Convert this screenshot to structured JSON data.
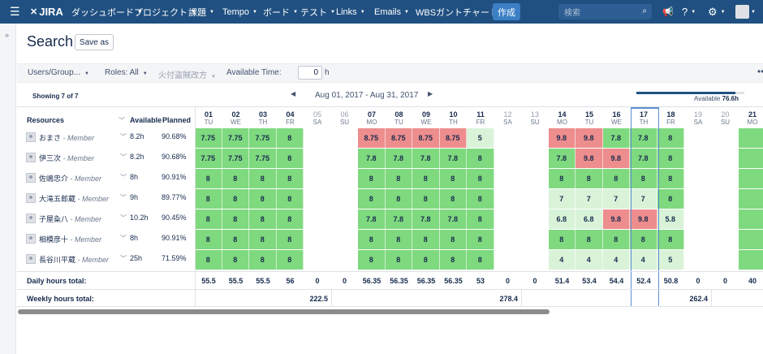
{
  "nav": {
    "logo": "JIRA",
    "items": [
      "ダッシュボード",
      "プロジェクト",
      "課題",
      "Tempo",
      "ボード",
      "テスト",
      "Links",
      "Emails",
      "WBSガントチャート"
    ],
    "create": "作成",
    "search_placeholder": "検索"
  },
  "page": {
    "title": "Search",
    "save_as": "Save as"
  },
  "filters": {
    "users_groups": "Users/Group...",
    "roles": "Roles: All",
    "third": "火付盗賊改方",
    "available_time_label": "Available Time:",
    "available_time_value": "0",
    "available_time_unit": "h"
  },
  "summary": {
    "showing": "Showing 7 of 7",
    "date_range": "Aug 01, 2017 - Aug 31, 2017",
    "available_label": "Available",
    "available_value": "76.6h",
    "available_fraction": 0.92
  },
  "table": {
    "headers": {
      "resources": "Resources",
      "available": "Available",
      "planned": "Planned"
    },
    "days": [
      {
        "n": "01",
        "w": "TU",
        "we": false
      },
      {
        "n": "02",
        "w": "WE",
        "we": false
      },
      {
        "n": "03",
        "w": "TH",
        "we": false
      },
      {
        "n": "04",
        "w": "FR",
        "we": false
      },
      {
        "n": "05",
        "w": "SA",
        "we": true
      },
      {
        "n": "06",
        "w": "SU",
        "we": true
      },
      {
        "n": "07",
        "w": "MO",
        "we": false
      },
      {
        "n": "08",
        "w": "TU",
        "we": false
      },
      {
        "n": "09",
        "w": "WE",
        "we": false
      },
      {
        "n": "10",
        "w": "TH",
        "we": false
      },
      {
        "n": "11",
        "w": "FR",
        "we": false
      },
      {
        "n": "12",
        "w": "SA",
        "we": true
      },
      {
        "n": "13",
        "w": "SU",
        "we": true
      },
      {
        "n": "14",
        "w": "MO",
        "we": false
      },
      {
        "n": "15",
        "w": "TU",
        "we": false
      },
      {
        "n": "16",
        "w": "WE",
        "we": false
      },
      {
        "n": "17",
        "w": "TH",
        "we": false
      },
      {
        "n": "18",
        "w": "FR",
        "we": false
      },
      {
        "n": "19",
        "w": "SA",
        "we": true
      },
      {
        "n": "20",
        "w": "SU",
        "we": true
      },
      {
        "n": "21",
        "w": "MO",
        "we": false
      }
    ],
    "today_index": 16,
    "rows": [
      {
        "name": "おまさ",
        "role": "- Member",
        "available": "8.2h",
        "planned": "90.68%",
        "cells": [
          [
            "7.75",
            "g"
          ],
          [
            "7.75",
            "g"
          ],
          [
            "7.75",
            "g"
          ],
          [
            "8",
            "g"
          ],
          null,
          null,
          [
            "8.75",
            "r"
          ],
          [
            "8.75",
            "r"
          ],
          [
            "8.75",
            "r"
          ],
          [
            "8.75",
            "r"
          ],
          [
            "5",
            "l"
          ],
          null,
          null,
          [
            "9.8",
            "r"
          ],
          [
            "9.8",
            "r"
          ],
          [
            "7.8",
            "g"
          ],
          [
            "7.8",
            "g"
          ],
          [
            "8",
            "g"
          ],
          null,
          null,
          [
            "",
            "g"
          ]
        ]
      },
      {
        "name": "伊三次",
        "role": "- Member",
        "available": "8.2h",
        "planned": "90.68%",
        "cells": [
          [
            "7.75",
            "g"
          ],
          [
            "7.75",
            "g"
          ],
          [
            "7.75",
            "g"
          ],
          [
            "8",
            "g"
          ],
          null,
          null,
          [
            "7.8",
            "g"
          ],
          [
            "7.8",
            "g"
          ],
          [
            "7.8",
            "g"
          ],
          [
            "7.8",
            "g"
          ],
          [
            "8",
            "g"
          ],
          null,
          null,
          [
            "7.8",
            "g"
          ],
          [
            "9.8",
            "r"
          ],
          [
            "9.8",
            "r"
          ],
          [
            "7.8",
            "g"
          ],
          [
            "8",
            "g"
          ],
          null,
          null,
          [
            "",
            "g"
          ]
        ]
      },
      {
        "name": "佐嶋忠介",
        "role": "- Member",
        "available": "8h",
        "planned": "90.91%",
        "cells": [
          [
            "8",
            "g"
          ],
          [
            "8",
            "g"
          ],
          [
            "8",
            "g"
          ],
          [
            "8",
            "g"
          ],
          null,
          null,
          [
            "8",
            "g"
          ],
          [
            "8",
            "g"
          ],
          [
            "8",
            "g"
          ],
          [
            "8",
            "g"
          ],
          [
            "8",
            "g"
          ],
          null,
          null,
          [
            "8",
            "g"
          ],
          [
            "8",
            "g"
          ],
          [
            "8",
            "g"
          ],
          [
            "8",
            "g"
          ],
          [
            "8",
            "g"
          ],
          null,
          null,
          [
            "",
            "g"
          ]
        ]
      },
      {
        "name": "大滝五郎蔵",
        "role": "- Member",
        "available": "9h",
        "planned": "89.77%",
        "cells": [
          [
            "8",
            "g"
          ],
          [
            "8",
            "g"
          ],
          [
            "8",
            "g"
          ],
          [
            "8",
            "g"
          ],
          null,
          null,
          [
            "8",
            "g"
          ],
          [
            "8",
            "g"
          ],
          [
            "8",
            "g"
          ],
          [
            "8",
            "g"
          ],
          [
            "8",
            "g"
          ],
          null,
          null,
          [
            "7",
            "l"
          ],
          [
            "7",
            "l"
          ],
          [
            "7",
            "l"
          ],
          [
            "7",
            "l"
          ],
          [
            "8",
            "g"
          ],
          null,
          null,
          [
            "",
            "g"
          ]
        ]
      },
      {
        "name": "子屋粂八",
        "role": "- Member",
        "available": "10.2h",
        "planned": "90.45%",
        "cells": [
          [
            "8",
            "g"
          ],
          [
            "8",
            "g"
          ],
          [
            "8",
            "g"
          ],
          [
            "8",
            "g"
          ],
          null,
          null,
          [
            "7.8",
            "g"
          ],
          [
            "7.8",
            "g"
          ],
          [
            "7.8",
            "g"
          ],
          [
            "7.8",
            "g"
          ],
          [
            "8",
            "g"
          ],
          null,
          null,
          [
            "6.8",
            "l"
          ],
          [
            "6.8",
            "l"
          ],
          [
            "9.8",
            "r"
          ],
          [
            "9.8",
            "r"
          ],
          [
            "5.8",
            "l"
          ],
          null,
          null,
          [
            "",
            "g"
          ]
        ]
      },
      {
        "name": "相模彦十",
        "role": "- Member",
        "available": "8h",
        "planned": "90.91%",
        "cells": [
          [
            "8",
            "g"
          ],
          [
            "8",
            "g"
          ],
          [
            "8",
            "g"
          ],
          [
            "8",
            "g"
          ],
          null,
          null,
          [
            "8",
            "g"
          ],
          [
            "8",
            "g"
          ],
          [
            "8",
            "g"
          ],
          [
            "8",
            "g"
          ],
          [
            "8",
            "g"
          ],
          null,
          null,
          [
            "8",
            "g"
          ],
          [
            "8",
            "g"
          ],
          [
            "8",
            "g"
          ],
          [
            "8",
            "g"
          ],
          [
            "8",
            "g"
          ],
          null,
          null,
          [
            "",
            "g"
          ]
        ]
      },
      {
        "name": "長谷川平蔵",
        "role": "- Member",
        "available": "25h",
        "planned": "71.59%",
        "cells": [
          [
            "8",
            "g"
          ],
          [
            "8",
            "g"
          ],
          [
            "8",
            "g"
          ],
          [
            "8",
            "g"
          ],
          null,
          null,
          [
            "8",
            "g"
          ],
          [
            "8",
            "g"
          ],
          [
            "8",
            "g"
          ],
          [
            "8",
            "g"
          ],
          [
            "8",
            "g"
          ],
          null,
          null,
          [
            "4",
            "l"
          ],
          [
            "4",
            "l"
          ],
          [
            "4",
            "l"
          ],
          [
            "4",
            "l"
          ],
          [
            "5",
            "l"
          ],
          null,
          null,
          [
            "",
            "g"
          ]
        ]
      }
    ],
    "daily_label": "Daily hours total:",
    "daily_totals": [
      "55.5",
      "55.5",
      "55.5",
      "56",
      "0",
      "0",
      "56.35",
      "56.35",
      "56.35",
      "56.35",
      "53",
      "0",
      "0",
      "51.4",
      "53.4",
      "54.4",
      "52.4",
      "50.8",
      "0",
      "0",
      "40"
    ],
    "weekly_label": "Weekly hours total:",
    "weekly_totals": [
      "222.5",
      "278.4",
      "262.4"
    ]
  },
  "colors": {
    "nav": "#205081",
    "green": "#7fd97f",
    "red": "#ee8d8d",
    "light_green": "#d9f3d9",
    "today": "#5b8fd1"
  }
}
